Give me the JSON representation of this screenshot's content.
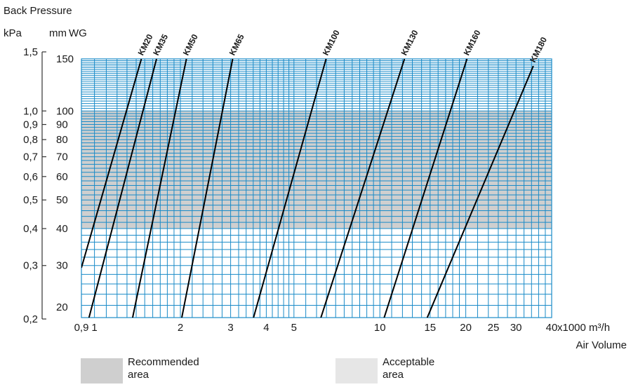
{
  "chart_data": {
    "type": "line",
    "title": "",
    "ylabel": "Back Pressure",
    "xlabel": "Air Volume",
    "x_unit": "x1000 m³/h",
    "y_units": [
      "kPa",
      "mm",
      "WG"
    ],
    "x_scale": "log",
    "y_scale": "log",
    "xlim": [
      0.9,
      40
    ],
    "ylim": [
      20,
      150
    ],
    "x_ticks": [
      0.9,
      1,
      2,
      3,
      4,
      5,
      10,
      15,
      20,
      25,
      30,
      40
    ],
    "x_tick_labels": [
      "0,9",
      "1",
      "2",
      "3",
      "4",
      "5",
      "10",
      "15",
      "20",
      "25",
      "30",
      "40"
    ],
    "y_ticks_mmwg": [
      20,
      30,
      40,
      50,
      60,
      70,
      80,
      90,
      100,
      150
    ],
    "y_tick_labels_mmwg": [
      "20",
      "30",
      "40",
      "50",
      "60",
      "70",
      "80",
      "90",
      "100",
      "150"
    ],
    "y_ticks_kpa": [
      0.2,
      0.3,
      0.4,
      0.5,
      0.6,
      0.7,
      0.8,
      0.9,
      1.0,
      1.5
    ],
    "y_tick_labels_kpa": [
      "0,2",
      "0,3",
      "0,4",
      "0,5",
      "0,6",
      "0,7",
      "0,8",
      "0,9",
      "1,0",
      "1,5"
    ],
    "grid": true,
    "colors": {
      "grid": "#1a8bc8",
      "line": "#000000",
      "recommended": "#cfcfcf",
      "acceptable": "#e6e6e6"
    },
    "bands": [
      {
        "label": "Recommended area",
        "y_range": [
          40,
          100
        ],
        "color": "#cfcfcf"
      }
    ],
    "series": [
      {
        "name": "KM20",
        "x": [
          0.9,
          1.46
        ],
        "y": [
          29.5,
          150
        ]
      },
      {
        "name": "KM35",
        "x": [
          0.93,
          1.65
        ],
        "y": [
          18,
          150
        ]
      },
      {
        "name": "KM50",
        "x": [
          1.33,
          2.1
        ],
        "y": [
          18,
          150
        ]
      },
      {
        "name": "KM65",
        "x": [
          1.98,
          3.05
        ],
        "y": [
          18,
          150
        ]
      },
      {
        "name": "KM100",
        "x": [
          3.5,
          6.48
        ],
        "y": [
          18,
          150
        ]
      },
      {
        "name": "KM130",
        "x": [
          6.0,
          12.2
        ],
        "y": [
          18,
          150
        ]
      },
      {
        "name": "KM160",
        "x": [
          10.0,
          20.2
        ],
        "y": [
          18,
          150
        ]
      },
      {
        "name": "KM180",
        "x": [
          14.0,
          34.5
        ],
        "y": [
          18,
          142
        ]
      }
    ]
  },
  "legend": {
    "recommended": {
      "line1": "Recommended",
      "line2": "area"
    },
    "acceptable": {
      "line1": "Acceptable",
      "line2": "area"
    }
  }
}
